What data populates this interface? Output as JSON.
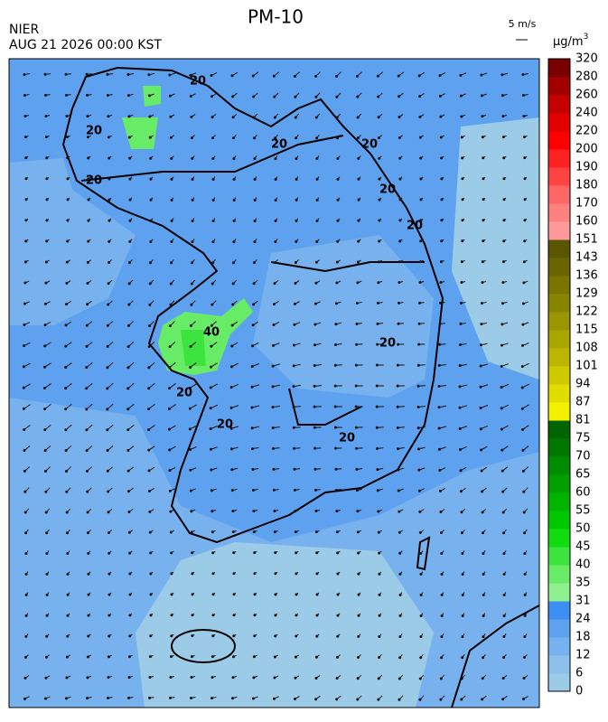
{
  "header": {
    "title": "PM-10",
    "agency": "NIER",
    "datetime": "AUG 21 2026 00:00 KST",
    "wind_scale": "5 m/s"
  },
  "colorbar": {
    "unit": "μg/m",
    "unit_sup": "3",
    "labels": [
      "0",
      "6",
      "12",
      "18",
      "24",
      "31",
      "35",
      "40",
      "45",
      "50",
      "55",
      "60",
      "65",
      "70",
      "75",
      "81",
      "87",
      "94",
      "101",
      "108",
      "115",
      "122",
      "129",
      "136",
      "143",
      "151",
      "160",
      "170",
      "180",
      "190",
      "200",
      "220",
      "240",
      "260",
      "280",
      "320"
    ],
    "colors": [
      "#9ccbe8",
      "#8cc0ea",
      "#78b2ee",
      "#5ea1ef",
      "#3c8ff0",
      "#8ef08e",
      "#68ec68",
      "#3ee43e",
      "#10dc10",
      "#00c800",
      "#00b400",
      "#00a000",
      "#008c00",
      "#007800",
      "#006400",
      "#f5ef00",
      "#e2dc00",
      "#cfc900",
      "#bcb600",
      "#aaa600",
      "#9a9500",
      "#8a8500",
      "#7a7500",
      "#6a6500",
      "#5a5500",
      "#ff9a9a",
      "#ff8080",
      "#ff6666",
      "#ff4444",
      "#ff2222",
      "#ff0000",
      "#e20000",
      "#c40000",
      "#a40000",
      "#7a0000"
    ]
  },
  "map": {
    "contour_labels": [
      "20",
      "20",
      "20",
      "20",
      "20",
      "20",
      "20",
      "40",
      "20",
      "20",
      "20",
      "20"
    ]
  }
}
